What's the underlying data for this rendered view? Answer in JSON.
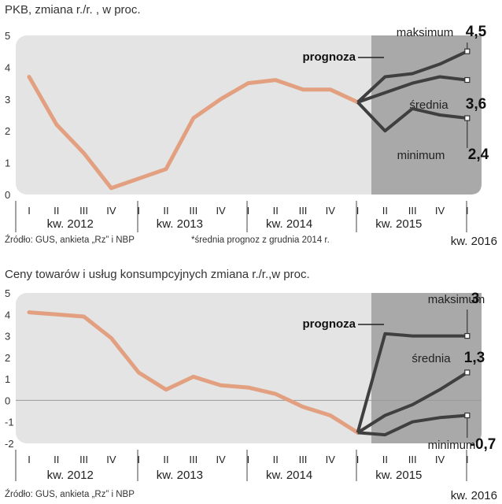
{
  "charts": [
    {
      "title": "PKB, zmiana r./r. , w proc.",
      "source": "Źródło: GUS, ankieta „Rz” i NBP",
      "note": "*średnia prognoz z grudnia 2014 r.",
      "last_year_label": "kw. 2016"
    },
    {
      "title": "Ceny towarów i usług konsumpcyjnych zmiana r./r.,w proc.",
      "source": "Źródło: GUS, ankieta „Rz” i NBP",
      "note": "",
      "last_year_label": "kw. 2016"
    }
  ],
  "chart_data": [
    {
      "type": "line",
      "title": "PKB, zmiana r./r. , w proc.",
      "ylim": [
        0,
        5
      ],
      "yticks": [
        0,
        1,
        2,
        3,
        4,
        5
      ],
      "quarter_labels": [
        "I",
        "II",
        "III",
        "IV",
        "I",
        "II",
        "III",
        "IV",
        "I",
        "II",
        "III",
        "IV",
        "I",
        "II",
        "III",
        "IV",
        "I"
      ],
      "year_groups": [
        {
          "label": "kw. 2012",
          "start": 0,
          "end": 3
        },
        {
          "label": "kw. 2013",
          "start": 4,
          "end": 7
        },
        {
          "label": "kw. 2014",
          "start": 8,
          "end": 11
        },
        {
          "label": "kw. 2015",
          "start": 12,
          "end": 15
        }
      ],
      "forecast_start": 13,
      "forecast_label": "prognoza",
      "actual": {
        "x": [
          0,
          1,
          2,
          3,
          4,
          5,
          6,
          7,
          8,
          9,
          10,
          11,
          12
        ],
        "values": [
          3.7,
          2.2,
          1.3,
          0.2,
          0.5,
          0.8,
          2.4,
          3.0,
          3.5,
          3.6,
          3.3,
          3.3,
          2.9
        ]
      },
      "forecast": [
        {
          "name": "maksimum",
          "end_label": "4,5",
          "x": [
            12,
            13,
            14,
            15,
            16
          ],
          "values": [
            2.9,
            3.7,
            3.8,
            4.1,
            4.5
          ]
        },
        {
          "name": "średnia",
          "end_label": "3,6",
          "x": [
            12,
            13,
            14,
            15,
            16
          ],
          "values": [
            2.9,
            3.2,
            3.5,
            3.7,
            3.6
          ]
        },
        {
          "name": "minimum",
          "end_label": "2,4",
          "x": [
            12,
            13,
            14,
            15,
            16
          ],
          "values": [
            2.9,
            2.0,
            2.7,
            2.5,
            2.4
          ]
        }
      ],
      "colors": {
        "actual": "#e2a080",
        "forecast": "#3f3f3f",
        "plot_bg": "#e4e4e4",
        "forecast_bg": "#a9a9a9"
      }
    },
    {
      "type": "line",
      "title": "Ceny towarów i usług konsumpcyjnych zmiana r./r.,w proc.",
      "ylim": [
        -2,
        5
      ],
      "yticks": [
        -2,
        -1,
        0,
        1,
        2,
        3,
        4,
        5
      ],
      "quarter_labels": [
        "I",
        "II",
        "III",
        "IV",
        "I",
        "II",
        "III",
        "IV",
        "I",
        "II",
        "III",
        "IV",
        "I",
        "II",
        "III",
        "IV",
        "I"
      ],
      "year_groups": [
        {
          "label": "kw. 2012",
          "start": 0,
          "end": 3
        },
        {
          "label": "kw. 2013",
          "start": 4,
          "end": 7
        },
        {
          "label": "kw. 2014",
          "start": 8,
          "end": 11
        },
        {
          "label": "kw. 2015",
          "start": 12,
          "end": 15
        }
      ],
      "forecast_start": 13,
      "forecast_label": "prognoza",
      "actual": {
        "x": [
          0,
          1,
          2,
          3,
          4,
          5,
          6,
          7,
          8,
          9,
          10,
          11,
          12
        ],
        "values": [
          4.1,
          4.0,
          3.9,
          2.9,
          1.3,
          0.5,
          1.1,
          0.7,
          0.6,
          0.3,
          -0.3,
          -0.7,
          -1.5
        ]
      },
      "forecast": [
        {
          "name": "maksimum",
          "end_label": "3",
          "x": [
            12,
            13,
            14,
            15,
            16
          ],
          "values": [
            -1.5,
            3.1,
            3.0,
            3.0,
            3.0
          ]
        },
        {
          "name": "średnia",
          "end_label": "1,3",
          "x": [
            12,
            13,
            14,
            15,
            16
          ],
          "values": [
            -1.5,
            -0.7,
            -0.2,
            0.5,
            1.3
          ]
        },
        {
          "name": "minimum",
          "end_label": "-0,7",
          "x": [
            12,
            13,
            14,
            15,
            16
          ],
          "values": [
            -1.5,
            -1.6,
            -1.0,
            -0.8,
            -0.7
          ]
        }
      ],
      "colors": {
        "actual": "#e2a080",
        "forecast": "#3f3f3f",
        "plot_bg": "#e4e4e4",
        "forecast_bg": "#a9a9a9",
        "zero_line": "#9a9a9a"
      }
    }
  ]
}
